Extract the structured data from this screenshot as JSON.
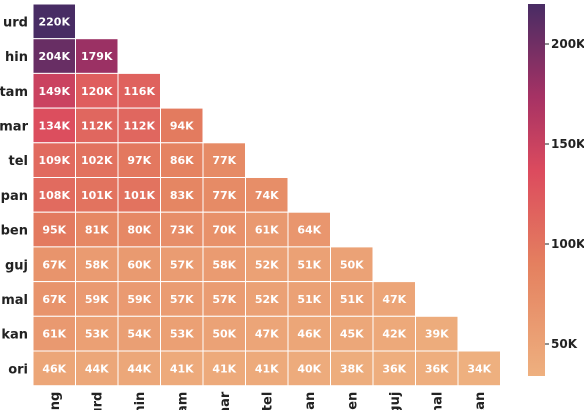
{
  "chart_data": {
    "type": "heatmap",
    "layout": "lower-triangular",
    "title": "",
    "xlabel": "",
    "ylabel": "",
    "x_categories": [
      "eng",
      "urd",
      "hin",
      "tam",
      "mar",
      "tel",
      "pan",
      "ben",
      "guj",
      "mal",
      "kan"
    ],
    "y_categories": [
      "urd",
      "hin",
      "tam",
      "mar",
      "tel",
      "pan",
      "ben",
      "guj",
      "mal",
      "kan",
      "ori"
    ],
    "values": [
      [
        220000
      ],
      [
        204000,
        179000
      ],
      [
        149000,
        120000,
        116000
      ],
      [
        134000,
        112000,
        112000,
        94000
      ],
      [
        109000,
        102000,
        97000,
        86000,
        77000
      ],
      [
        108000,
        101000,
        101000,
        83000,
        77000,
        74000
      ],
      [
        95000,
        81000,
        80000,
        73000,
        70000,
        61000,
        64000
      ],
      [
        67000,
        58000,
        60000,
        57000,
        58000,
        52000,
        51000,
        50000
      ],
      [
        67000,
        59000,
        59000,
        57000,
        57000,
        52000,
        51000,
        51000,
        47000
      ],
      [
        61000,
        53000,
        54000,
        53000,
        50000,
        47000,
        46000,
        45000,
        42000,
        39000
      ],
      [
        46000,
        44000,
        44000,
        41000,
        41000,
        41000,
        40000,
        38000,
        36000,
        36000,
        34000
      ]
    ],
    "labels": [
      [
        "220K"
      ],
      [
        "204K",
        "179K"
      ],
      [
        "149K",
        "120K",
        "116K"
      ],
      [
        "134K",
        "112K",
        "112K",
        "94K"
      ],
      [
        "109K",
        "102K",
        "97K",
        "86K",
        "77K"
      ],
      [
        "108K",
        "101K",
        "101K",
        "83K",
        "77K",
        "74K"
      ],
      [
        "95K",
        "81K",
        "80K",
        "73K",
        "70K",
        "61K",
        "64K"
      ],
      [
        "67K",
        "58K",
        "60K",
        "57K",
        "58K",
        "52K",
        "51K",
        "50K"
      ],
      [
        "67K",
        "59K",
        "59K",
        "57K",
        "57K",
        "52K",
        "51K",
        "51K",
        "47K"
      ],
      [
        "61K",
        "53K",
        "54K",
        "53K",
        "50K",
        "47K",
        "46K",
        "45K",
        "42K",
        "39K"
      ],
      [
        "46K",
        "44K",
        "44K",
        "41K",
        "41K",
        "41K",
        "40K",
        "38K",
        "36K",
        "36K",
        "34K"
      ]
    ],
    "colorbar": {
      "range": [
        34000,
        220000
      ],
      "ticks": [
        50000,
        100000,
        150000,
        200000
      ],
      "tick_labels": [
        "50K",
        "100K",
        "150K",
        "200K"
      ],
      "colormap": "flare"
    },
    "colors": {
      "low": "#eeb07f",
      "mid": "#dc4b5e",
      "high": "#482c64"
    }
  }
}
